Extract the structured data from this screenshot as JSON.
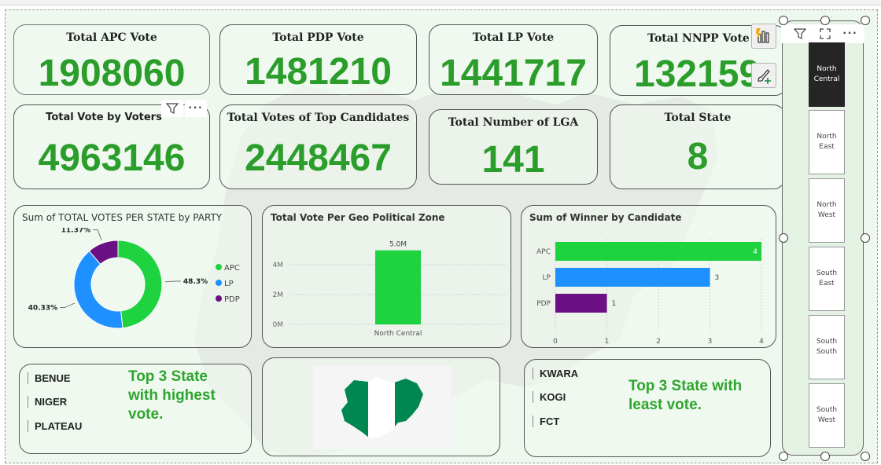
{
  "kpis": {
    "apc": {
      "title": "Total APC Vote",
      "value": "1908060"
    },
    "pdp": {
      "title": "Total PDP Vote",
      "value": "1481210"
    },
    "lp": {
      "title": "Total LP Vote",
      "value": "1441717"
    },
    "nnpp": {
      "title": "Total NNPP Vote",
      "value": "132159"
    },
    "voters": {
      "title": "Total Vote by Voters",
      "value": "4963146"
    },
    "top_candidates": {
      "title": "Total Votes of Top Candidates",
      "value": "2448467"
    },
    "lga": {
      "title": "Total Number of LGA",
      "value": "141"
    },
    "state": {
      "title": "Total State",
      "value": "8"
    }
  },
  "colors": {
    "apc": "#1ed33f",
    "lp": "#1e90ff",
    "pdp": "#6b0f85",
    "kpi_green": "#2a9d2a",
    "note_green": "#2ea52e"
  },
  "icons": {
    "filter": "filter-icon",
    "more": "more-options-icon",
    "focus": "focus-mode-icon",
    "visual": "visualizations-icon",
    "format": "format-paintbrush-icon"
  },
  "chart_data": [
    {
      "type": "pie",
      "title": "Sum of TOTAL VOTES PER STATE by PARTY",
      "categories": [
        "APC",
        "LP",
        "PDP"
      ],
      "values": [
        48.3,
        40.33,
        11.37
      ],
      "labels": [
        "48.3%",
        "40.33%",
        "11.37%"
      ],
      "legend": "right"
    },
    {
      "type": "bar",
      "title": "Total Vote Per Geo Political Zone",
      "categories": [
        "North Central"
      ],
      "values": [
        4963146
      ],
      "data_labels": [
        "5.0M"
      ],
      "yticks": [
        "0M",
        "2M",
        "4M"
      ],
      "ylim": [
        0,
        5000000
      ],
      "grid": true
    },
    {
      "type": "bar",
      "orientation": "horizontal",
      "title": "Sum of Winner by Candidate",
      "categories": [
        "APC",
        "LP",
        "PDP"
      ],
      "values": [
        4,
        3,
        1
      ],
      "xticks": [
        "0",
        "1",
        "2",
        "3",
        "4"
      ],
      "xlim": [
        0,
        4
      ],
      "grid": true
    }
  ],
  "top_states": {
    "items": [
      "BENUE",
      "NIGER",
      "PLATEAU"
    ],
    "note_lines": [
      "Top 3 State",
      "with highest",
      "vote."
    ]
  },
  "least_states": {
    "items": [
      "KWARA",
      "KOGI",
      "FCT"
    ],
    "note_lines": [
      "Top 3 State with",
      "least vote."
    ]
  },
  "slicer": {
    "items": [
      [
        "North",
        "Central"
      ],
      [
        "North",
        "East"
      ],
      [
        "North",
        "West"
      ],
      [
        "South",
        "East"
      ],
      [
        "South",
        "South"
      ],
      [
        "South",
        "West"
      ]
    ],
    "selected": 0
  }
}
